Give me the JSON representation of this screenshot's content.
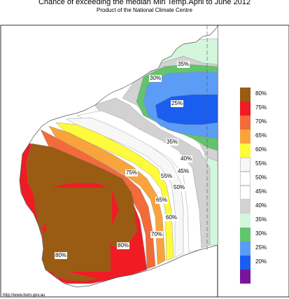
{
  "header": {
    "title": "Chance of exceeding the median Min Temp.April to June 2012",
    "subtitle": "Product of the National Climate Centre"
  },
  "legend": {
    "items": [
      {
        "label": "80%",
        "color": "#9a5b13"
      },
      {
        "label": "75%",
        "color": "#ef1c24"
      },
      {
        "label": "70%",
        "color": "#f26b3a"
      },
      {
        "label": "65%",
        "color": "#f9a33d"
      },
      {
        "label": "60%",
        "color": "#fdfb3b"
      },
      {
        "label": "55%",
        "color": "#f7f7f7"
      },
      {
        "label": "50%",
        "color": "#ffffff"
      },
      {
        "label": "45%",
        "color": "#ffffff"
      },
      {
        "label": "40%",
        "color": "#d2d2d2"
      },
      {
        "label": "35%",
        "color": "#d4f6dd"
      },
      {
        "label": "30%",
        "color": "#62c46c"
      },
      {
        "label": "25%",
        "color": "#5b9cf7"
      },
      {
        "label": "20%",
        "color": "#1a5ef0"
      },
      {
        "label": "",
        "color": "#79159a"
      }
    ]
  },
  "map_labels": [
    {
      "id": "label-35-north",
      "text": "35%"
    },
    {
      "id": "label-30-north",
      "text": "30%"
    },
    {
      "id": "label-25",
      "text": "25%"
    },
    {
      "id": "label-35-mid",
      "text": "35%"
    },
    {
      "id": "label-40",
      "text": "40%"
    },
    {
      "id": "label-45",
      "text": "45%"
    },
    {
      "id": "label-55",
      "text": "55%"
    },
    {
      "id": "label-50",
      "text": "50%"
    },
    {
      "id": "label-75",
      "text": "75%"
    },
    {
      "id": "label-65",
      "text": "65%"
    },
    {
      "id": "label-60",
      "text": "60%"
    },
    {
      "id": "label-70",
      "text": "70%"
    },
    {
      "id": "label-80-west",
      "text": "80%"
    },
    {
      "id": "label-80-east",
      "text": "80%"
    }
  ],
  "footer": {
    "credit": "http://www.bom.gov.au"
  }
}
